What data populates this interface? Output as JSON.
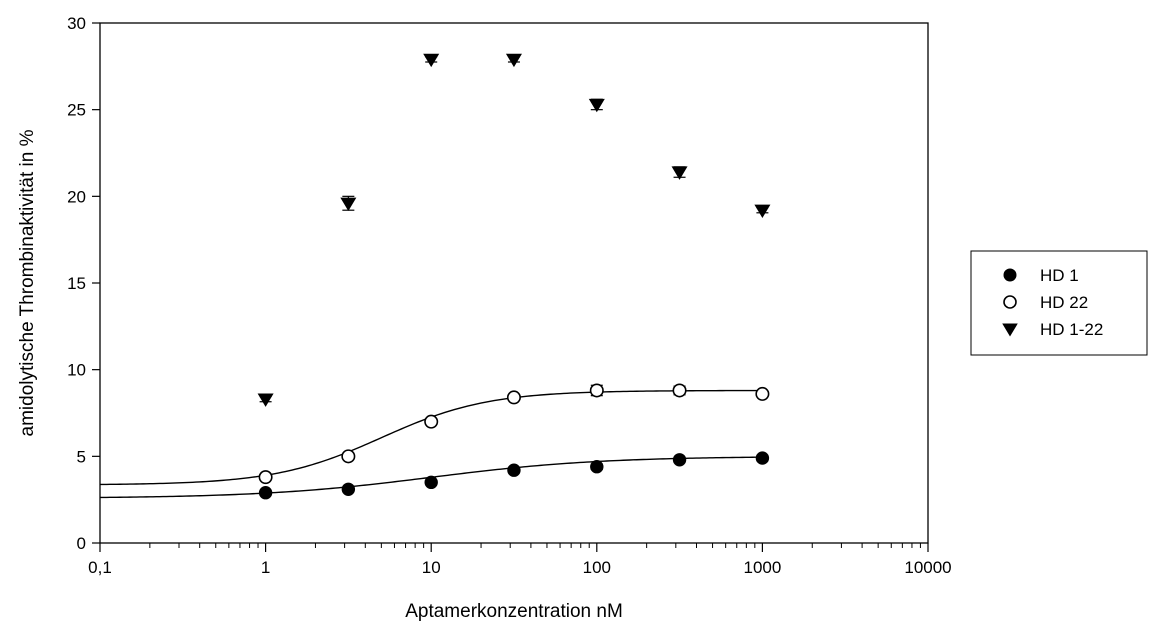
{
  "chart_data": {
    "type": "scatter",
    "xlabel": "Aptamerkonzentration nM",
    "ylabel": "amidolytische Thrombinaktivität in %",
    "xscale": "log",
    "xlim": [
      0.1,
      10000
    ],
    "ylim": [
      0,
      30
    ],
    "x_ticks": [
      {
        "value": 0.1,
        "label": "0,1"
      },
      {
        "value": 1,
        "label": "1"
      },
      {
        "value": 10,
        "label": "10"
      },
      {
        "value": 100,
        "label": "100"
      },
      {
        "value": 1000,
        "label": "1000"
      },
      {
        "value": 10000,
        "label": "10000"
      }
    ],
    "y_ticks": [
      {
        "value": 0,
        "label": "0"
      },
      {
        "value": 5,
        "label": "5"
      },
      {
        "value": 10,
        "label": "10"
      },
      {
        "value": 15,
        "label": "15"
      },
      {
        "value": 20,
        "label": "20"
      },
      {
        "value": 25,
        "label": "25"
      },
      {
        "value": 30,
        "label": "30"
      }
    ],
    "grid": false,
    "legend_position": "right",
    "series": [
      {
        "name": "HD 1",
        "marker": "filled-circle",
        "x": [
          1,
          3.16,
          10,
          31.6,
          100,
          316,
          1000
        ],
        "y": [
          2.9,
          3.1,
          3.5,
          4.2,
          4.4,
          4.8,
          4.9
        ],
        "err": [
          0.1,
          0.1,
          0.1,
          0.15,
          0.15,
          0.1,
          0.15
        ],
        "fit": {
          "bottom": 2.58,
          "top": 5.0,
          "ec50": 10,
          "hill": 0.85
        }
      },
      {
        "name": "HD 22",
        "marker": "open-circle",
        "x": [
          1,
          3.16,
          10,
          31.6,
          100,
          316,
          1000
        ],
        "y": [
          3.8,
          5.0,
          7.0,
          8.4,
          8.8,
          8.8,
          8.6
        ],
        "err": [
          0.1,
          0.1,
          0.15,
          0.15,
          0.3,
          0.25,
          0.15
        ],
        "fit": {
          "bottom": 3.35,
          "top": 8.8,
          "ec50": 5,
          "hill": 1.35
        }
      },
      {
        "name": "HD 1-22",
        "marker": "filled-triangle-down",
        "x": [
          1,
          3.16,
          10,
          31.6,
          100,
          316,
          1000
        ],
        "y": [
          8.3,
          19.6,
          27.9,
          27.9,
          25.3,
          21.4,
          19.2
        ],
        "err": [
          0.15,
          0.4,
          0.15,
          0.15,
          0.3,
          0.3,
          0.15
        ]
      }
    ]
  }
}
